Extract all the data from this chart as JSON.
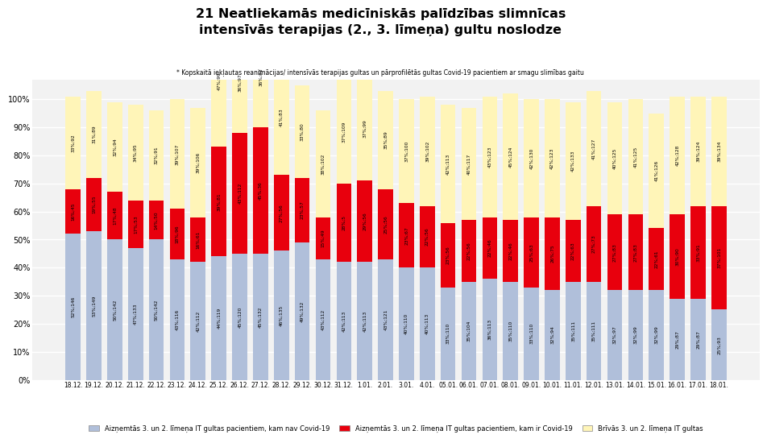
{
  "title": "21 Neatliekamās medicīniskās palīdzības slimnīcas\nintensīvās terapijas (2., 3. līmeņa) gultu noslodze",
  "subtitle": "* Kopskaitā iekļautas reanimācijas/ intensīvās terapijas gultas un pārprofilētās gultas Covid-19 pacientiem ar smagu slimības gaitu",
  "dates": [
    "18.12.",
    "19.12.",
    "20.12.",
    "21.12.",
    "22.12.",
    "23.12.",
    "24.12.",
    "25.12.",
    "26.12.",
    "27.12.",
    "28.12.",
    "29.12.",
    "30.12.",
    "31.12.",
    "1.01.",
    "2.01.",
    "3.01.",
    "4.01.",
    "05.01.",
    "06.01.",
    "07.01.",
    "08.01.",
    "09.01.",
    "10.01.",
    "11.01.",
    "12.01.",
    "13.01.",
    "14.01.",
    "15.01.",
    "16.01.",
    "17.01.",
    "18.01."
  ],
  "blue_pct": [
    52,
    53,
    50,
    47,
    50,
    43,
    42,
    44,
    45,
    45,
    46,
    49,
    43,
    42,
    42,
    43,
    40,
    40,
    33,
    35,
    36,
    35,
    33,
    32,
    35,
    35,
    32,
    32,
    32,
    29,
    29,
    25
  ],
  "blue_abs": [
    146,
    149,
    142,
    133,
    142,
    116,
    112,
    119,
    120,
    132,
    135,
    132,
    112,
    113,
    113,
    121,
    110,
    113,
    110,
    104,
    113,
    110,
    110,
    94,
    111,
    111,
    97,
    99,
    99,
    87,
    87,
    93
  ],
  "red_pct": [
    16,
    19,
    17,
    17,
    14,
    18,
    16,
    39,
    43,
    45,
    27,
    23,
    15,
    28,
    29,
    25,
    23,
    22,
    23,
    22,
    22,
    22,
    25,
    26,
    22,
    27,
    27,
    27,
    22,
    30,
    33,
    37
  ],
  "red_abs": [
    45,
    55,
    48,
    53,
    50,
    96,
    61,
    81,
    112,
    36,
    56,
    57,
    49,
    5,
    56,
    56,
    67,
    56,
    56,
    56,
    46,
    46,
    63,
    75,
    63,
    73,
    83,
    83,
    61,
    90,
    91,
    101
  ],
  "yellow_pct": [
    33,
    31,
    32,
    34,
    32,
    39,
    39,
    47,
    36,
    36,
    41,
    33,
    38,
    37,
    37,
    35,
    37,
    39,
    42,
    40,
    43,
    45,
    42,
    42,
    42,
    41,
    40,
    41,
    41,
    42,
    39,
    39
  ],
  "yellow_abs": [
    92,
    89,
    94,
    95,
    91,
    107,
    106,
    99,
    97,
    83,
    83,
    80,
    102,
    109,
    99,
    89,
    100,
    102,
    113,
    117,
    123,
    124,
    130,
    123,
    133,
    127,
    125,
    125,
    126,
    128,
    124,
    134
  ],
  "blue_color": "#b0bfda",
  "red_color": "#e8000d",
  "yellow_color": "#fff5b8",
  "legend_blue": "Aizņemtās 3. un 2. līmeņa IT gultas pacientiem, kam nav Covid-19",
  "legend_red": "Aizņemtās 3. un 2. līmeņa IT gultas pacientiem, kam ir Covid-19",
  "legend_yellow": "Brīvās 3. un 2. līmeņa IT gultas",
  "yticks": [
    0,
    10,
    20,
    30,
    40,
    50,
    60,
    70,
    80,
    90,
    100
  ],
  "bg_color": "#ffffff",
  "grid_color": "#ffffff",
  "plot_bg": "#f2f2f2"
}
